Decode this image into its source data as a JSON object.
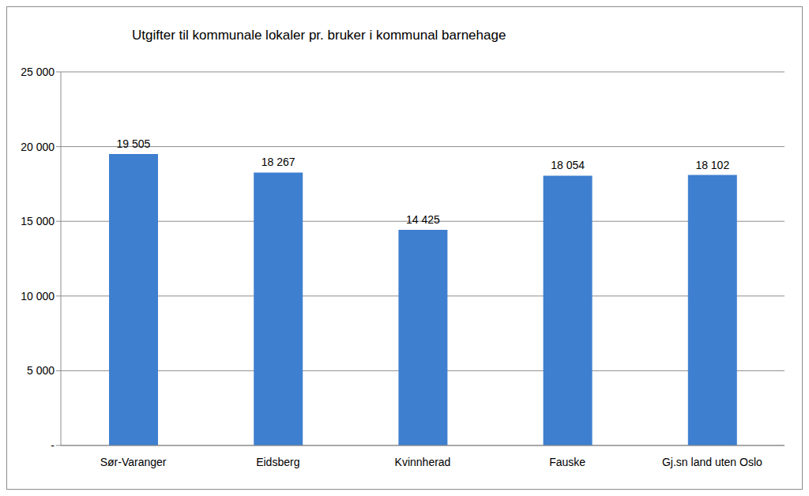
{
  "chart_data": {
    "type": "bar",
    "title": "Utgifter til kommunale lokaler pr. bruker i kommunal barnehage",
    "categories": [
      "Sør-Varanger",
      "Eidsberg",
      "Kvinnherad",
      "Fauske",
      "Gj.sn land uten Oslo"
    ],
    "values": [
      19505,
      18267,
      14425,
      18054,
      18102
    ],
    "value_labels": [
      "19 505",
      "18 267",
      "14 425",
      "18 054",
      "18 102"
    ],
    "color": "#3f7fd0",
    "ylim": [
      0,
      25000
    ],
    "yticks": [
      {
        "value": 0,
        "label": "-"
      },
      {
        "value": 5000,
        "label": "5 000"
      },
      {
        "value": 10000,
        "label": "10 000"
      },
      {
        "value": 15000,
        "label": "15 000"
      },
      {
        "value": 20000,
        "label": "20 000"
      },
      {
        "value": 25000,
        "label": "25 000"
      }
    ],
    "grid": true,
    "data_labels": true
  }
}
